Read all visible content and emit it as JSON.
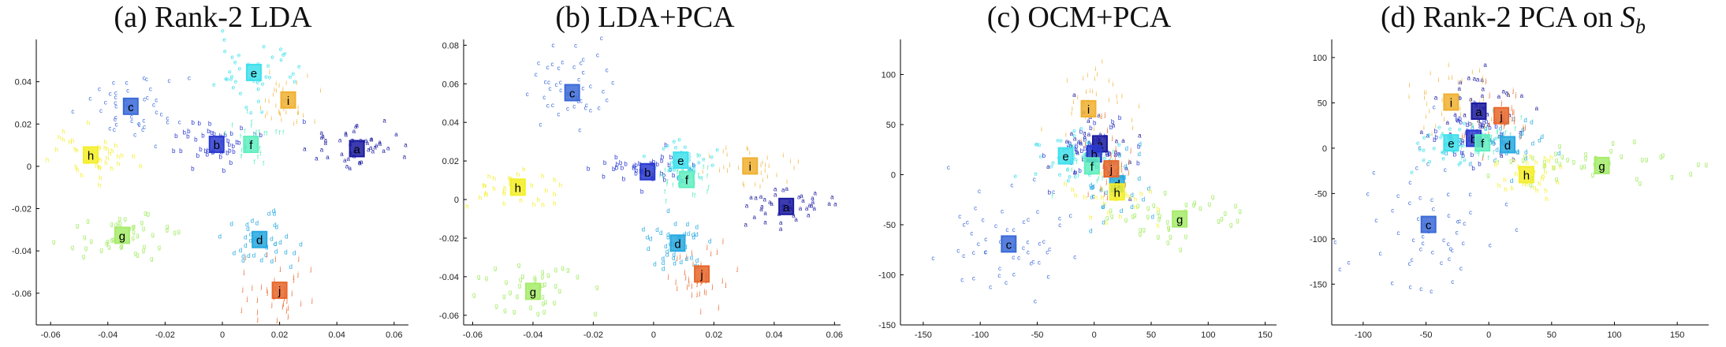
{
  "class_colors": {
    "a": "#1a1aa0",
    "b": "#2a3ad0",
    "c": "#3a6ad8",
    "d": "#27a9e1",
    "e": "#3fe0ec",
    "f": "#5fefc0",
    "g": "#a6ec6a",
    "h": "#f4ef2a",
    "i": "#f0b030",
    "j": "#e8662a"
  },
  "chart_data": [
    {
      "type": "scatter",
      "title": "(a) Rank-2 LDA",
      "xlim": [
        -0.065,
        0.065
      ],
      "ylim": [
        -0.075,
        0.06
      ],
      "xticks": [
        -0.06,
        -0.04,
        -0.02,
        0,
        0.02,
        0.04,
        0.06
      ],
      "xtick_labels": [
        "-0.06",
        "-0.04",
        "-0.02",
        "0",
        "0.02",
        "0.04",
        "0.06"
      ],
      "yticks": [
        -0.06,
        -0.04,
        -0.02,
        0,
        0.02,
        0.04
      ],
      "ytick_labels": [
        "-0.06",
        "-0.04",
        "-0.02",
        "0",
        "0.02",
        "0.04"
      ],
      "clusters": [
        {
          "label": "a",
          "center": [
            0.047,
            0.008
          ],
          "spread": [
            0.01,
            0.006
          ],
          "n": 50
        },
        {
          "label": "b",
          "center": [
            -0.002,
            0.01
          ],
          "spread": [
            0.009,
            0.006
          ],
          "n": 45
        },
        {
          "label": "c",
          "center": [
            -0.032,
            0.028
          ],
          "spread": [
            0.009,
            0.008
          ],
          "n": 45
        },
        {
          "label": "d",
          "center": [
            0.013,
            -0.035
          ],
          "spread": [
            0.006,
            0.008
          ],
          "n": 40
        },
        {
          "label": "e",
          "center": [
            0.011,
            0.044
          ],
          "spread": [
            0.006,
            0.008
          ],
          "n": 45
        },
        {
          "label": "f",
          "center": [
            0.01,
            0.01
          ],
          "spread": [
            0.005,
            0.006
          ],
          "n": 30
        },
        {
          "label": "g",
          "center": [
            -0.035,
            -0.033
          ],
          "spread": [
            0.01,
            0.006
          ],
          "n": 45
        },
        {
          "label": "h",
          "center": [
            -0.046,
            0.005
          ],
          "spread": [
            0.009,
            0.006
          ],
          "n": 45
        },
        {
          "label": "i",
          "center": [
            0.023,
            0.031
          ],
          "spread": [
            0.005,
            0.008
          ],
          "n": 35
        },
        {
          "label": "j",
          "center": [
            0.02,
            -0.059
          ],
          "spread": [
            0.006,
            0.008
          ],
          "n": 40
        }
      ]
    },
    {
      "type": "scatter",
      "title": "(b) LDA+PCA",
      "xlim": [
        -0.063,
        0.062
      ],
      "ylim": [
        -0.065,
        0.083
      ],
      "xticks": [
        -0.06,
        -0.04,
        -0.02,
        0,
        0.02,
        0.04,
        0.06
      ],
      "xtick_labels": [
        "-0.06",
        "-0.04",
        "-0.02",
        "0",
        "0.02",
        "0.04",
        "0.06"
      ],
      "yticks": [
        -0.06,
        -0.04,
        -0.02,
        0,
        0.02,
        0.04,
        0.06,
        0.08
      ],
      "ytick_labels": [
        "-0.06",
        "-0.04",
        "-0.02",
        "0",
        "0.02",
        "0.04",
        "0.06",
        "0.08"
      ],
      "clusters": [
        {
          "label": "a",
          "center": [
            0.044,
            -0.004
          ],
          "spread": [
            0.008,
            0.005
          ],
          "n": 45
        },
        {
          "label": "b",
          "center": [
            -0.002,
            0.014
          ],
          "spread": [
            0.009,
            0.005
          ],
          "n": 45
        },
        {
          "label": "c",
          "center": [
            -0.027,
            0.055
          ],
          "spread": [
            0.007,
            0.009
          ],
          "n": 45
        },
        {
          "label": "d",
          "center": [
            0.008,
            -0.023
          ],
          "spread": [
            0.006,
            0.007
          ],
          "n": 40
        },
        {
          "label": "e",
          "center": [
            0.009,
            0.02
          ],
          "spread": [
            0.006,
            0.005
          ],
          "n": 40
        },
        {
          "label": "f",
          "center": [
            0.011,
            0.01
          ],
          "spread": [
            0.005,
            0.005
          ],
          "n": 30
        },
        {
          "label": "g",
          "center": [
            -0.04,
            -0.048
          ],
          "spread": [
            0.008,
            0.007
          ],
          "n": 40
        },
        {
          "label": "h",
          "center": [
            -0.045,
            0.006
          ],
          "spread": [
            0.007,
            0.005
          ],
          "n": 40
        },
        {
          "label": "i",
          "center": [
            0.032,
            0.017
          ],
          "spread": [
            0.007,
            0.006
          ],
          "n": 35
        },
        {
          "label": "j",
          "center": [
            0.016,
            -0.039
          ],
          "spread": [
            0.005,
            0.008
          ],
          "n": 40
        }
      ]
    },
    {
      "type": "scatter",
      "title": "(c) OCM+PCA",
      "xlim": [
        -170,
        160
      ],
      "ylim": [
        -150,
        135
      ],
      "xticks": [
        -150,
        -100,
        -50,
        0,
        50,
        100,
        150
      ],
      "xtick_labels": [
        "-150",
        "-100",
        "-50",
        "0",
        "50",
        "100",
        "150"
      ],
      "yticks": [
        -150,
        -100,
        -50,
        0,
        50,
        100
      ],
      "ytick_labels": [
        "-150",
        "-100",
        "-50",
        "0",
        "50",
        "100"
      ],
      "clusters": [
        {
          "label": "a",
          "center": [
            5,
            30
          ],
          "spread": [
            18,
            20
          ],
          "n": 40
        },
        {
          "label": "b",
          "center": [
            0,
            20
          ],
          "spread": [
            18,
            16
          ],
          "n": 40
        },
        {
          "label": "c",
          "center": [
            -75,
            -70
          ],
          "spread": [
            35,
            30
          ],
          "n": 55
        },
        {
          "label": "d",
          "center": [
            20,
            -10
          ],
          "spread": [
            18,
            18
          ],
          "n": 35
        },
        {
          "label": "e",
          "center": [
            -25,
            18
          ],
          "spread": [
            20,
            14
          ],
          "n": 40
        },
        {
          "label": "f",
          "center": [
            -2,
            8
          ],
          "spread": [
            14,
            12
          ],
          "n": 30
        },
        {
          "label": "g",
          "center": [
            75,
            -45
          ],
          "spread": [
            30,
            14
          ],
          "n": 40
        },
        {
          "label": "h",
          "center": [
            20,
            -18
          ],
          "spread": [
            16,
            14
          ],
          "n": 35
        },
        {
          "label": "i",
          "center": [
            -5,
            65
          ],
          "spread": [
            15,
            28
          ],
          "n": 40
        },
        {
          "label": "j",
          "center": [
            15,
            5
          ],
          "spread": [
            14,
            18
          ],
          "n": 35
        }
      ]
    },
    {
      "type": "scatter",
      "title": "(d) Rank-2 PCA on ",
      "title_symbol": "S",
      "title_subscript": "b",
      "xlim": [
        -125,
        175
      ],
      "ylim": [
        -195,
        120
      ],
      "xticks": [
        -100,
        -50,
        0,
        50,
        100,
        150
      ],
      "xtick_labels": [
        "-100",
        "-50",
        "0",
        "50",
        "100",
        "150"
      ],
      "yticks": [
        -150,
        -100,
        -50,
        0,
        50,
        100
      ],
      "ytick_labels": [
        "-150",
        "-100",
        "-50",
        "0",
        "50",
        "100"
      ],
      "clusters": [
        {
          "label": "a",
          "center": [
            -8,
            40
          ],
          "spread": [
            20,
            20
          ],
          "n": 40
        },
        {
          "label": "b",
          "center": [
            -12,
            10
          ],
          "spread": [
            18,
            16
          ],
          "n": 40
        },
        {
          "label": "c",
          "center": [
            -48,
            -85
          ],
          "spread": [
            28,
            40
          ],
          "n": 55
        },
        {
          "label": "d",
          "center": [
            15,
            3
          ],
          "spread": [
            18,
            16
          ],
          "n": 35
        },
        {
          "label": "e",
          "center": [
            -30,
            5
          ],
          "spread": [
            18,
            12
          ],
          "n": 40
        },
        {
          "label": "f",
          "center": [
            -5,
            5
          ],
          "spread": [
            14,
            12
          ],
          "n": 30
        },
        {
          "label": "g",
          "center": [
            90,
            -20
          ],
          "spread": [
            40,
            14
          ],
          "n": 45
        },
        {
          "label": "h",
          "center": [
            30,
            -30
          ],
          "spread": [
            16,
            14
          ],
          "n": 35
        },
        {
          "label": "i",
          "center": [
            -30,
            50
          ],
          "spread": [
            18,
            20
          ],
          "n": 40
        },
        {
          "label": "j",
          "center": [
            10,
            35
          ],
          "spread": [
            16,
            16
          ],
          "n": 35
        }
      ]
    }
  ]
}
